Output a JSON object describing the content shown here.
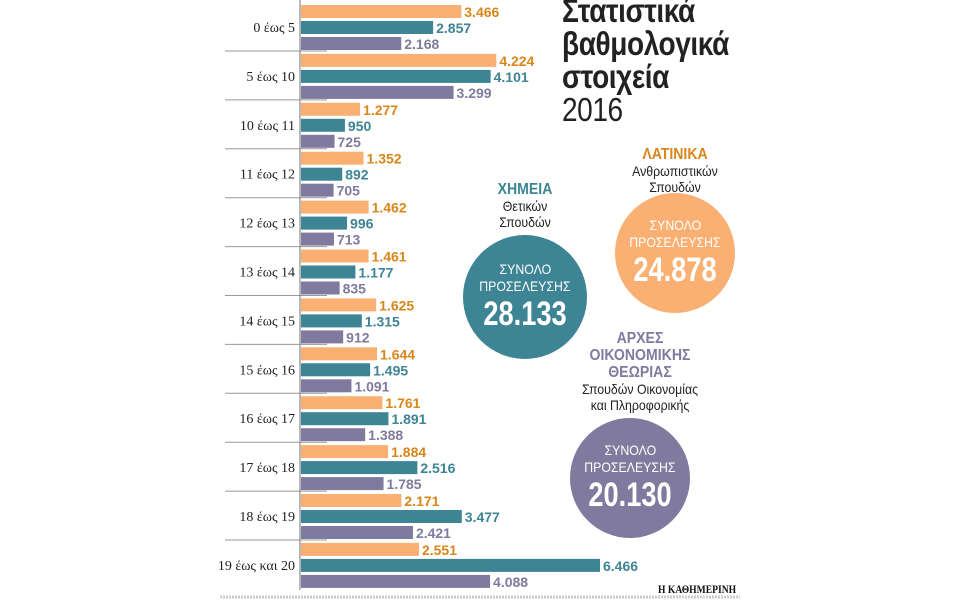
{
  "title": {
    "line1": "Στατιστικά",
    "line2": "βαθμολογικά",
    "line3": "στοιχεία",
    "year": "2016"
  },
  "chart_data": {
    "type": "bar",
    "orientation": "horizontal",
    "categories": [
      "0 έως 5",
      "5 έως 10",
      "10 έως 11",
      "11 έως 12",
      "12 έως 13",
      "13 έως 14",
      "14 έως 15",
      "15 έως 16",
      "16 έως 17",
      "17 έως 18",
      "18 έως 19",
      "19 έως και 20"
    ],
    "series": [
      {
        "name": "ΛΑΤΙΝΙΚΑ",
        "color": "#f9b072",
        "label_color": "#d9861a",
        "values": [
          3466,
          4224,
          1277,
          1352,
          1462,
          1461,
          1625,
          1644,
          1761,
          1884,
          2171,
          2551
        ],
        "labels": [
          "3.466",
          "4.224",
          "1.277",
          "1.352",
          "1.462",
          "1.461",
          "1.625",
          "1.644",
          "1.761",
          "1.884",
          "2.171",
          "2.551"
        ]
      },
      {
        "name": "ΧΗΜΕΙΑ",
        "color": "#3d8494",
        "label_color": "#3d8494",
        "values": [
          2857,
          4101,
          950,
          892,
          996,
          1177,
          1315,
          1495,
          1891,
          2516,
          3477,
          6466
        ],
        "labels": [
          "2.857",
          "4.101",
          "950",
          "892",
          "996",
          "1.177",
          "1.315",
          "1.495",
          "1.891",
          "2.516",
          "3.477",
          "6.466"
        ]
      },
      {
        "name": "ΑΡΧΕΣ ΟΙΚΟΝΟΜΙΚΗΣ ΘΕΩΡΙΑΣ",
        "color": "#7f7a9e",
        "label_color": "#7f7a9e",
        "values": [
          2168,
          3299,
          725,
          705,
          713,
          835,
          912,
          1091,
          1388,
          1785,
          2421,
          4088
        ],
        "labels": [
          "2.168",
          "3.299",
          "725",
          "705",
          "713",
          "835",
          "912",
          "1.091",
          "1.388",
          "1.785",
          "2.421",
          "4.088"
        ]
      }
    ],
    "xlim": [
      0,
      6500
    ],
    "grid": false
  },
  "subjects": {
    "latin": {
      "name": "ΛΑΤΙΝΙΚΑ",
      "sub1": "Ανθρωπιστικών",
      "sub2": "Σπουδών",
      "label1": "ΣΥΝΟΛΟ",
      "label2": "ΠΡΟΣΕΛΕΥΣΗΣ",
      "total": "24.878",
      "color": "#f9b072",
      "name_color": "#d9861a"
    },
    "chem": {
      "name": "ΧΗΜΕΙΑ",
      "sub1": "Θετικών",
      "sub2": "Σπουδών",
      "label1": "ΣΥΝΟΛΟ",
      "label2": "ΠΡΟΣΕΛΕΥΣΗΣ",
      "total": "28.133",
      "color": "#3d8494",
      "name_color": "#3d8494"
    },
    "econ": {
      "name1": "ΑΡΧΕΣ",
      "name2": "ΟΙΚΟΝΟΜΙΚΗΣ",
      "name3": "ΘΕΩΡΙΑΣ",
      "sub1": "Σπουδών Οικονομίας",
      "sub2": "και Πληροφορικής",
      "label1": "ΣΥΝΟΛΟ",
      "label2": "ΠΡΟΣΕΛΕΥΣΗΣ",
      "total": "20.130",
      "color": "#7f7a9e",
      "name_color": "#7f7a9e"
    }
  },
  "source": "Η ΚΑΘΗΜΕΡΙΝΗ"
}
